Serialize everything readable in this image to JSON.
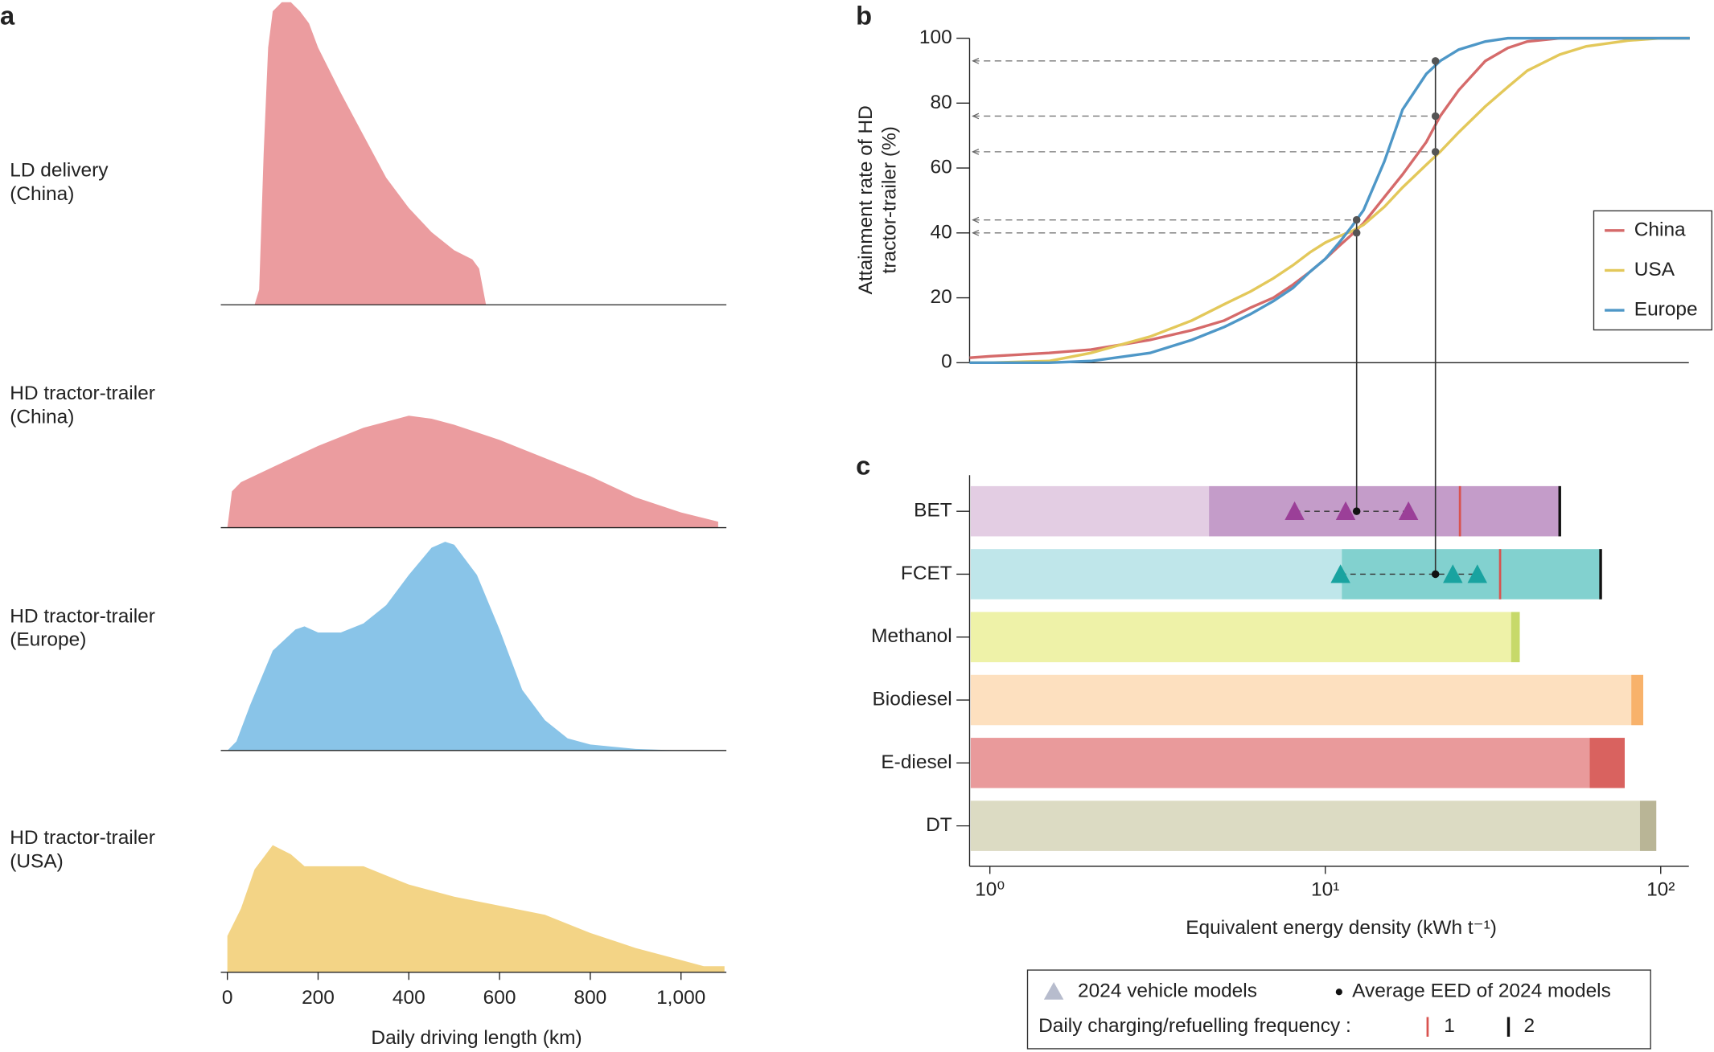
{
  "chart_data": [
    {
      "panel": "a",
      "type": "ridgeline",
      "xlabel": "Daily driving length (km)",
      "xlim": [
        0,
        1100
      ],
      "xticks": [
        0,
        200,
        400,
        600,
        800,
        {
          "value": 1000,
          "label": "1,000"
        }
      ],
      "ylim": [
        0,
        100
      ],
      "series": [
        {
          "name": "LD delivery\n(China)",
          "color": "#eb9c9f",
          "x": [
            60,
            70,
            80,
            90,
            100,
            120,
            140,
            160,
            180,
            200,
            250,
            300,
            350,
            400,
            450,
            500,
            540,
            555,
            570
          ],
          "values": [
            0,
            5,
            50,
            85,
            97,
            100,
            100,
            97,
            93,
            85,
            70,
            56,
            42,
            32,
            24,
            18,
            15,
            12,
            0
          ]
        },
        {
          "name": "HD tractor-trailer\n(China)",
          "color": "#eb9c9f",
          "x": [
            0,
            10,
            30,
            100,
            200,
            300,
            400,
            450,
            500,
            600,
            700,
            800,
            900,
            1000,
            1082
          ],
          "values": [
            0,
            12,
            15,
            20,
            27,
            33,
            37,
            36,
            34,
            29,
            23,
            17,
            10,
            5,
            2
          ]
        },
        {
          "name": "HD tractor-trailer\n(Europe)",
          "color": "#89c4e8",
          "x": [
            0,
            20,
            50,
            100,
            150,
            170,
            200,
            250,
            300,
            350,
            400,
            450,
            480,
            500,
            550,
            600,
            650,
            700,
            750,
            800,
            900,
            1000
          ],
          "values": [
            0,
            3,
            15,
            33,
            40,
            41,
            39,
            39,
            42,
            48,
            58,
            67,
            69,
            68,
            58,
            40,
            20,
            10,
            4,
            2,
            0.5,
            0
          ]
        },
        {
          "name": "HD tractor-trailer\n(USA)",
          "color": "#f3d486",
          "x": [
            0,
            30,
            60,
            100,
            140,
            170,
            220,
            300,
            350,
            400,
            500,
            600,
            700,
            800,
            900,
            1000,
            1050,
            1096
          ],
          "values": [
            12,
            21,
            34,
            42,
            39,
            35,
            35,
            35,
            32,
            29,
            25,
            22,
            19,
            13,
            8,
            4,
            2,
            2
          ]
        }
      ]
    },
    {
      "panel": "b",
      "type": "line",
      "ylabel": "Attainment rate of HD\ntractor-trailer (%)",
      "log_x": true,
      "xlim": [
        0.87,
        125
      ],
      "ylim": [
        0,
        100
      ],
      "yticks": [
        0,
        20,
        40,
        60,
        80,
        100
      ],
      "legend": "right",
      "x": [
        0.87,
        1,
        1.5,
        2,
        3,
        4,
        5,
        6,
        7,
        8,
        9,
        10,
        11,
        12,
        13,
        15,
        17,
        20,
        22,
        25,
        30,
        35,
        40,
        50,
        60,
        80,
        100,
        122
      ],
      "series": [
        {
          "name": "China",
          "color": "#d56a6a",
          "values": [
            1.5,
            2,
            3,
            4,
            7,
            10,
            13,
            17,
            20,
            24,
            28,
            32,
            36,
            39.5,
            43,
            51,
            58,
            68,
            76,
            84,
            93,
            97,
            99,
            100,
            100,
            100,
            100,
            100
          ]
        },
        {
          "name": "USA",
          "color": "#e3c85a",
          "values": [
            0,
            0,
            0.5,
            3,
            8,
            13,
            18,
            22,
            26,
            30,
            34,
            37,
            39,
            40.5,
            42.5,
            48,
            54,
            61,
            65,
            71,
            79,
            85,
            90,
            95,
            97.5,
            99.3,
            100,
            100
          ]
        },
        {
          "name": "Europe",
          "color": "#4e97c7",
          "values": [
            0,
            0,
            0,
            0.5,
            3,
            7,
            11,
            15,
            19,
            23,
            28,
            32,
            37,
            42,
            47,
            62,
            78,
            89,
            93,
            96.5,
            99,
            100,
            100,
            100,
            100,
            100,
            100,
            100
          ]
        }
      ],
      "guides": [
        {
          "x": 12.4,
          "y": 44
        },
        {
          "x": 12.4,
          "y": 40
        },
        {
          "x": 21.3,
          "y": 93
        },
        {
          "x": 21.3,
          "y": 76
        },
        {
          "x": 21.3,
          "y": 65
        }
      ]
    },
    {
      "panel": "c",
      "type": "range_bar",
      "xlabel": "Equivalent energy density (kWh t⁻¹)",
      "log_x": true,
      "xlim": [
        0.87,
        125
      ],
      "xticks": [
        {
          "value": 1,
          "label": "10⁰"
        },
        {
          "value": 10,
          "label": "10¹"
        },
        {
          "value": 100,
          "label": "10²"
        }
      ],
      "categories": [
        "BET",
        "FCET",
        "Methanol",
        "Biodiesel",
        "E-diesel",
        "DT"
      ],
      "light_end": [
        4.5,
        11.2,
        35.8,
        81.7,
        61.4,
        86.7
      ],
      "end": [
        50,
        66.2,
        38,
        88.7,
        78.1,
        97
      ],
      "light_colors": [
        "#e3cde3",
        "#bfe6ea",
        "#eef2a8",
        "#fde0bf",
        "#e99a9b",
        "#dcdbc3"
      ],
      "dark_colors": [
        "#c49cc9",
        "#82d1cf",
        "#c7d96a",
        "#f8b26b",
        "#d9625f",
        "#b9b596"
      ],
      "freq1": [
        25.2,
        33.2,
        null,
        null,
        null,
        null
      ],
      "freq2": [
        50,
        66.2,
        null,
        null,
        null,
        null
      ],
      "freq_colors": [
        "#d9534f",
        "#111111"
      ],
      "models": [
        [
          8.1,
          11.5,
          17.7
        ],
        [
          11.1,
          24.0,
          28.4
        ],
        [],
        [],
        [],
        []
      ],
      "model_colors": [
        "#9b3f98",
        "#19a3a0",
        null,
        null,
        null,
        null
      ],
      "average": [
        12.4,
        21.3,
        null,
        null,
        null,
        null
      ],
      "legend": {
        "models": "2024 vehicle models",
        "average": "Average EED of 2024 models",
        "frequency": "Daily charging/refuelling frequency :",
        "freq1": "1",
        "freq2": "2"
      }
    }
  ]
}
